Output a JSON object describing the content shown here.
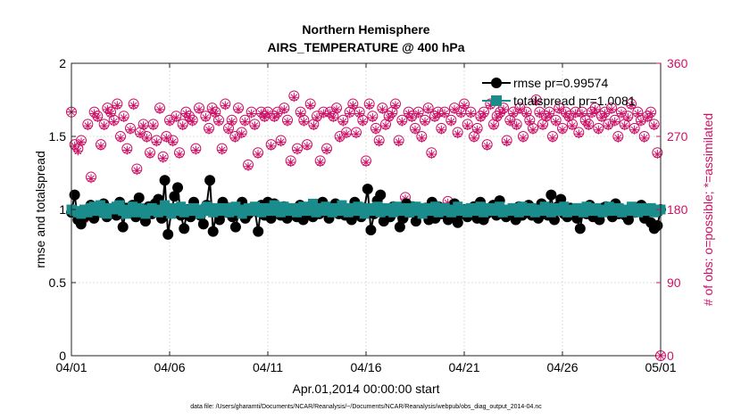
{
  "chart_data": {
    "type": "line",
    "title": "Northern Hemisphere",
    "subtitle": "AIRS_TEMPERATURE @ 400 hPa",
    "xlabel": "Apr.01,2014 00:00:00 start",
    "ylabel_left": "rmse and totalspread",
    "ylabel_right": "# of obs: o=possible; *=assimilated",
    "footnote": "data file: /Users/gharamti/Documents/NCAR/Reanalysis/~/Documents/NCAR/Reanalysis/webpub/obs_diag_output_2014-04.nc",
    "xlim": [
      0,
      30
    ],
    "ylim_left": [
      0,
      2
    ],
    "ylim_right": [
      0,
      360
    ],
    "x_ticks": [
      0,
      5,
      10,
      15,
      20,
      25,
      30
    ],
    "x_tick_labels": [
      "04/01",
      "04/06",
      "04/11",
      "04/16",
      "04/21",
      "04/26",
      "05/01"
    ],
    "y_ticks_left": [
      0,
      0.5,
      1,
      1.5,
      2
    ],
    "y_tick_labels_left": [
      "0",
      "0.5",
      "1",
      "1.5",
      "2"
    ],
    "y_ticks_right": [
      0,
      90,
      180,
      270,
      360
    ],
    "y_tick_labels_right": [
      "0",
      "90",
      "180",
      "270",
      "360"
    ],
    "legend_position": "top-right",
    "colors": {
      "rmse": "#000000",
      "totalspread": "#1a8c8c",
      "obs": "#cc1166"
    },
    "series": [
      {
        "name": "rmse pr=0.99574",
        "axis": "left",
        "values": [
          0.98,
          1.1,
          0.93,
          0.9,
          0.95,
          1.0,
          1.03,
          0.94,
          1.02,
          0.98,
          1.04,
          0.95,
          0.97,
          1.0,
          0.96,
          1.05,
          0.88,
          1.01,
          0.98,
          1.03,
          0.95,
          1.08,
          0.97,
          0.92,
          1.02,
          0.97,
          1.04,
          1.07,
          0.94,
          1.2,
          0.83,
          0.98,
          1.09,
          1.15,
          0.96,
          0.87,
          1.0,
          0.95,
          1.05,
          0.98,
          0.96,
          0.9,
          1.03,
          1.2,
          0.85,
          0.98,
          0.93,
          1.05,
          0.98,
          1.01,
          0.95,
          0.88,
          0.98,
          1.05,
          0.94,
          0.97,
          1.01,
          0.99,
          0.85,
          1.03,
          0.96,
          1.05,
          0.94,
          1.04,
          0.98,
          0.96,
          1.02,
          0.94,
          0.97,
          1.0,
          0.95,
          1.03,
          0.93,
          0.98,
          1.02,
          0.95,
          1.0,
          0.97,
          1.05,
          0.99,
          0.94,
          1.01,
          1.04,
          0.97,
          1.02,
          0.96,
          1.0,
          0.93,
          1.05,
          0.98,
          0.95,
          1.01,
          1.14,
          0.86,
          0.97,
          1.06,
          1.1,
          0.92,
          0.97,
          0.95,
          1.02,
          1.0,
          0.88,
          0.94,
          1.04,
          0.98,
          1.02,
          0.92,
          0.97,
          1.0,
          1.01,
          0.93,
          1.05,
          0.94,
          1.02,
          0.97,
          1.0,
          0.93,
          0.96,
          1.04,
          0.91,
          0.97,
          1.0,
          0.95,
          0.99,
          1.02,
          0.94,
          1.05,
          0.93,
          0.97,
          1.01,
          1.03,
          0.96,
          1.06,
          0.97,
          0.95,
          0.98,
          1.0,
          0.93,
          1.02,
          0.96,
          0.98,
          1.03,
          0.96,
          1.0,
          0.94,
          1.04,
          0.97,
          0.96,
          1.1,
          0.93,
          1.02,
          1.07,
          0.97,
          0.95,
          1.01,
          0.98,
          0.94,
          0.87,
          1.0,
          0.97,
          1.03,
          0.95,
          0.98,
          0.93,
          1.01,
          1.02,
          0.98,
          0.95,
          1.04,
          0.97,
          1.0,
          0.96,
          0.93,
          1.01,
          0.98,
          0.99,
          1.03,
          0.94,
          0.98,
          0.91,
          0.87,
          0.89,
          1.0
        ]
      },
      {
        "name": "totalspread pr=1.0081",
        "axis": "left",
        "values": [
          1.0,
          0.99,
          0.98,
          0.97,
          1.0,
          0.98,
          1.01,
          1.02,
          0.99,
          1.03,
          0.98,
          0.97,
          1.01,
          1.0,
          1.02,
          1.03,
          0.99,
          0.97,
          1.0,
          1.02,
          0.98,
          1.01,
          1.0,
          0.97,
          0.99,
          1.01,
          1.0,
          0.98,
          1.0,
          1.03,
          0.99,
          0.97,
          1.01,
          0.99,
          1.02,
          0.98,
          1.0,
          0.99,
          1.01,
          1.0,
          0.97,
          1.0,
          1.02,
          0.99,
          0.98,
          1.01,
          1.0,
          0.99,
          1.01,
          0.98,
          1.0,
          1.02,
          0.99,
          0.97,
          1.0,
          1.01,
          0.99,
          1.02,
          1.0,
          0.98,
          1.01,
          0.99,
          1.0,
          1.03,
          0.99,
          0.98,
          1.02,
          1.0,
          0.99,
          1.01,
          0.98,
          1.0,
          1.02,
          0.99,
          1.0,
          1.04,
          0.98,
          1.01,
          0.99,
          1.02,
          1.0,
          0.98,
          1.01,
          0.99,
          1.03,
          1.0,
          0.98,
          1.01,
          0.99,
          1.02,
          1.0,
          0.97,
          1.01,
          0.99,
          1.0,
          1.02,
          0.98,
          1.0,
          1.01,
          0.99,
          0.98,
          1.02,
          1.0,
          0.99,
          1.01,
          0.98,
          1.0,
          1.02,
          0.99,
          0.97,
          1.01,
          1.0,
          0.99,
          1.02,
          0.98,
          1.0,
          1.01,
          0.99,
          0.98,
          1.0,
          1.02,
          0.99,
          1.0,
          0.98,
          1.01,
          1.0,
          0.99,
          1.02,
          0.98,
          1.0,
          1.01,
          0.99,
          1.0,
          1.02,
          0.98,
          1.0,
          0.99,
          1.01,
          1.0,
          0.98,
          1.02,
          0.99,
          1.0,
          1.01,
          0.98,
          1.0,
          0.99,
          1.02,
          1.0,
          0.98,
          1.01,
          0.99,
          1.0,
          1.02,
          0.98,
          1.0,
          0.99,
          1.01,
          1.0,
          0.98,
          1.02,
          0.99,
          1.0,
          1.01,
          0.99,
          0.98,
          1.0,
          1.02,
          0.99,
          1.0,
          1.01,
          0.98,
          1.0,
          0.99,
          1.02,
          1.0,
          0.98,
          1.01,
          0.99,
          1.0,
          1.01,
          0.98,
          0.99,
          1.0
        ]
      },
      {
        "name": "obs possible",
        "axis": "right",
        "marker": "circle",
        "values": [
          300,
          260,
          255,
          265,
          170,
          285,
          220,
          300,
          295,
          260,
          285,
          305,
          300,
          290,
          310,
          270,
          295,
          255,
          280,
          310,
          230,
          275,
          285,
          270,
          250,
          285,
          265,
          305,
          245,
          270,
          290,
          265,
          295,
          250,
          285,
          300,
          295,
          290,
          255,
          305,
          180,
          295,
          280,
          305,
          300,
          290,
          255,
          310,
          280,
          290,
          270,
          305,
          275,
          290,
          235,
          300,
          285,
          250,
          300,
          295,
          300,
          260,
          295,
          300,
          265,
          305,
          290,
          240,
          320,
          255,
          300,
          290,
          260,
          310,
          285,
          295,
          240,
          300,
          255,
          300,
          295,
          305,
          270,
          290,
          275,
          300,
          310,
          275,
          300,
          290,
          240,
          310,
          295,
          280,
          265,
          305,
          285,
          295,
          300,
          310,
          265,
          290,
          195,
          300,
          295,
          280,
          300,
          270,
          290,
          305,
          250,
          295,
          300,
          280,
          300,
          190,
          290,
          305,
          275,
          300,
          310,
          285,
          300,
          270,
          280,
          295,
          300,
          260,
          310,
          285,
          295,
          300,
          305,
          265,
          290,
          300,
          285,
          305,
          270,
          300,
          290,
          280,
          315,
          300,
          285,
          295,
          300,
          270,
          290,
          305,
          280,
          300,
          295,
          285,
          300,
          275,
          300,
          290,
          285,
          300,
          305,
          280,
          295,
          300,
          285,
          305,
          290,
          270,
          300,
          285,
          295,
          310,
          280,
          300,
          290,
          270,
          295,
          300,
          285,
          250,
          0
        ]
      },
      {
        "name": "obs assimilated",
        "axis": "right",
        "marker": "asterisk",
        "values": [
          300,
          258,
          252,
          263,
          168,
          283,
          218,
          298,
          293,
          258,
          283,
          303,
          298,
          288,
          308,
          268,
          293,
          253,
          278,
          308,
          228,
          273,
          283,
          268,
          248,
          283,
          263,
          303,
          243,
          268,
          288,
          263,
          293,
          248,
          283,
          298,
          293,
          288,
          253,
          303,
          178,
          293,
          278,
          303,
          298,
          288,
          253,
          308,
          278,
          288,
          268,
          303,
          273,
          288,
          233,
          298,
          283,
          248,
          298,
          293,
          298,
          258,
          293,
          298,
          263,
          303,
          288,
          238,
          318,
          253,
          298,
          288,
          258,
          308,
          283,
          293,
          238,
          298,
          253,
          298,
          293,
          303,
          268,
          288,
          273,
          298,
          308,
          273,
          298,
          288,
          238,
          308,
          293,
          278,
          263,
          303,
          283,
          293,
          298,
          308,
          263,
          288,
          193,
          298,
          293,
          278,
          298,
          268,
          288,
          303,
          248,
          293,
          298,
          278,
          298,
          188,
          288,
          303,
          273,
          298,
          308,
          283,
          298,
          268,
          278,
          293,
          298,
          258,
          308,
          283,
          293,
          298,
          303,
          263,
          288,
          298,
          283,
          303,
          268,
          298,
          288,
          278,
          313,
          298,
          283,
          293,
          298,
          268,
          288,
          303,
          278,
          298,
          293,
          283,
          298,
          273,
          298,
          288,
          283,
          298,
          303,
          278,
          293,
          298,
          283,
          303,
          288,
          268,
          298,
          283,
          293,
          308,
          278,
          298,
          288,
          268,
          293,
          298,
          283,
          248,
          0
        ]
      }
    ]
  }
}
